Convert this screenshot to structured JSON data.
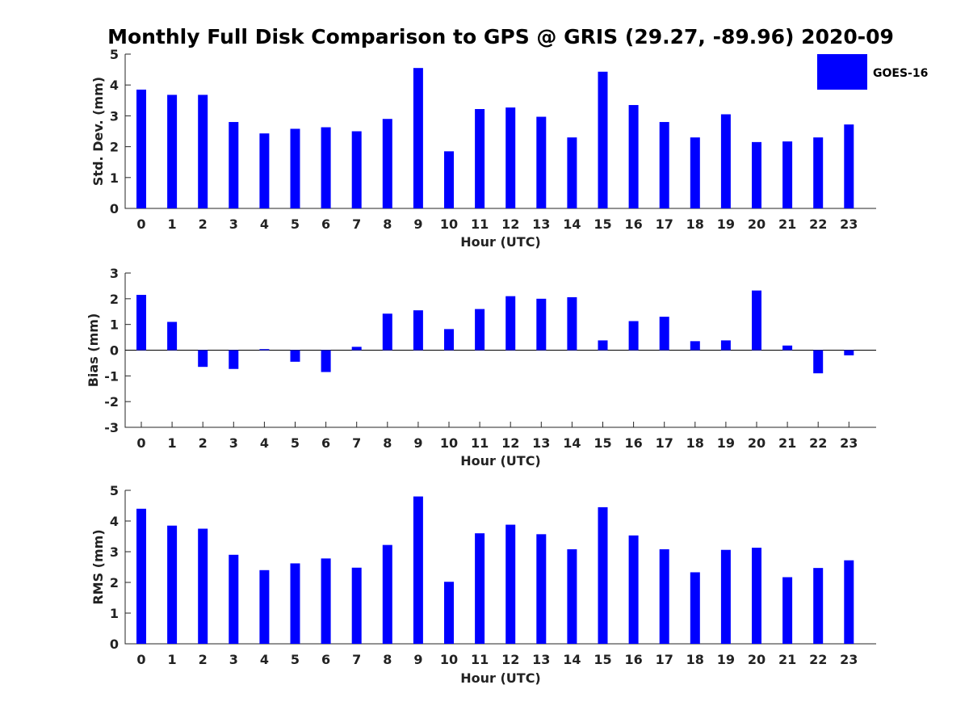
{
  "chart_data": {
    "title": "Monthly Full Disk Comparison to GPS @ GRIS (29.27, -89.96) 2020-09",
    "legend": {
      "label": "GOES-16",
      "color": "#0000ff",
      "placement": "top-right"
    },
    "categories": [
      "0",
      "1",
      "2",
      "3",
      "4",
      "5",
      "6",
      "7",
      "8",
      "9",
      "10",
      "11",
      "12",
      "13",
      "14",
      "15",
      "16",
      "17",
      "18",
      "19",
      "20",
      "21",
      "22",
      "23"
    ],
    "subplots": [
      {
        "type": "bar",
        "xlabel": "Hour (UTC)",
        "ylabel": "Std. Dev. (mm)",
        "ylim": [
          0,
          5
        ],
        "yticks": [
          "0",
          "1",
          "2",
          "3",
          "4",
          "5"
        ],
        "series": [
          {
            "name": "GOES-16",
            "values": [
              3.85,
              3.68,
              3.68,
              2.8,
              2.43,
              2.58,
              2.63,
              2.5,
              2.9,
              4.55,
              1.85,
              3.22,
              3.27,
              2.97,
              2.3,
              4.43,
              3.35,
              2.8,
              2.3,
              3.05,
              2.15,
              2.17,
              2.3,
              2.72
            ]
          }
        ]
      },
      {
        "type": "bar",
        "xlabel": "Hour (UTC)",
        "ylabel": "Bias (mm)",
        "ylim": [
          -3,
          3
        ],
        "yticks": [
          "-3",
          "-2",
          "-1",
          "0",
          "1",
          "2",
          "3"
        ],
        "series": [
          {
            "name": "GOES-16",
            "values": [
              2.15,
              1.1,
              -0.65,
              -0.73,
              0.04,
              -0.45,
              -0.85,
              0.13,
              1.42,
              1.55,
              0.82,
              1.6,
              2.1,
              2.0,
              2.06,
              0.38,
              1.13,
              1.3,
              0.35,
              0.38,
              2.32,
              0.18,
              -0.9,
              -0.2
            ]
          }
        ]
      },
      {
        "type": "bar",
        "xlabel": "Hour (UTC)",
        "ylabel": "RMS (mm)",
        "ylim": [
          0,
          5
        ],
        "yticks": [
          "0",
          "1",
          "2",
          "3",
          "4",
          "5"
        ],
        "series": [
          {
            "name": "GOES-16",
            "values": [
              4.4,
              3.85,
              3.75,
              2.9,
              2.4,
              2.62,
              2.78,
              2.48,
              3.22,
              4.8,
              2.02,
              3.6,
              3.88,
              3.57,
              3.08,
              4.45,
              3.53,
              3.08,
              2.33,
              3.06,
              3.13,
              2.17,
              2.47,
              2.72
            ]
          }
        ]
      }
    ]
  }
}
